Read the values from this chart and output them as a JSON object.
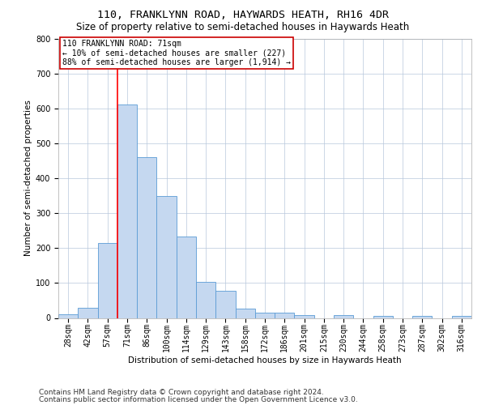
{
  "title": "110, FRANKLYNN ROAD, HAYWARDS HEATH, RH16 4DR",
  "subtitle": "Size of property relative to semi-detached houses in Haywards Heath",
  "xlabel": "Distribution of semi-detached houses by size in Haywards Heath",
  "ylabel": "Number of semi-detached properties",
  "footer_line1": "Contains HM Land Registry data © Crown copyright and database right 2024.",
  "footer_line2": "Contains public sector information licensed under the Open Government Licence v3.0.",
  "categories": [
    "28sqm",
    "42sqm",
    "57sqm",
    "71sqm",
    "86sqm",
    "100sqm",
    "114sqm",
    "129sqm",
    "143sqm",
    "158sqm",
    "172sqm",
    "186sqm",
    "201sqm",
    "215sqm",
    "230sqm",
    "244sqm",
    "258sqm",
    "273sqm",
    "287sqm",
    "302sqm",
    "316sqm"
  ],
  "values": [
    10,
    30,
    215,
    610,
    460,
    350,
    233,
    103,
    77,
    27,
    15,
    15,
    9,
    0,
    8,
    0,
    5,
    0,
    5,
    0,
    5
  ],
  "bar_color": "#c5d8f0",
  "bar_edge_color": "#5b9bd5",
  "red_line_index": 3,
  "annotation_title": "110 FRANKLYNN ROAD: 71sqm",
  "annotation_line1": "← 10% of semi-detached houses are smaller (227)",
  "annotation_line2": "88% of semi-detached houses are larger (1,914) →",
  "annotation_box_color": "#ffffff",
  "annotation_box_edge_color": "#cc0000",
  "ylim": [
    0,
    800
  ],
  "yticks": [
    0,
    100,
    200,
    300,
    400,
    500,
    600,
    700,
    800
  ],
  "title_fontsize": 9.5,
  "subtitle_fontsize": 8.5,
  "axis_label_fontsize": 7.5,
  "tick_fontsize": 7,
  "annotation_fontsize": 7,
  "footer_fontsize": 6.5
}
